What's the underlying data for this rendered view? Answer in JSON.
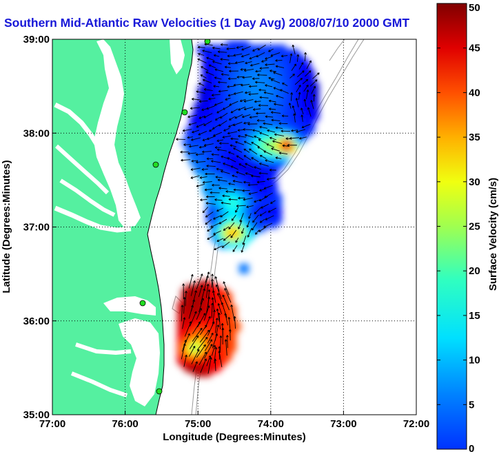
{
  "title": "Southern Mid-Atlantic Raw Velocities (1 Day Avg) 2008/07/10 2000 GMT",
  "map": {
    "xlabel": "Longitude (Degrees:Minutes)",
    "ylabel": "Latitude (Degrees:Minutes)",
    "lon_range": [
      -77,
      -72
    ],
    "lat_range": [
      35,
      39
    ],
    "x_ticks": [
      {
        "value": -77,
        "label": "77:00"
      },
      {
        "value": -76,
        "label": "76:00"
      },
      {
        "value": -75,
        "label": "75:00"
      },
      {
        "value": -74,
        "label": "74:00"
      },
      {
        "value": -73,
        "label": "73:00"
      },
      {
        "value": -72,
        "label": "72:00"
      }
    ],
    "y_ticks": [
      {
        "value": 39,
        "label": "39:00"
      },
      {
        "value": 38,
        "label": "38:00"
      },
      {
        "value": 37,
        "label": "37:00"
      },
      {
        "value": 36,
        "label": "36:00"
      },
      {
        "value": 35,
        "label": "35:00"
      }
    ],
    "grid": "dotted",
    "land_color": "#55f0a0",
    "water_color": "#ffffff",
    "site_color": "#22dd22",
    "vector_color": "#000000"
  },
  "colorbar": {
    "label": "Surface Velocity (cm/s)",
    "range": [
      0,
      50
    ],
    "ticks": [
      0,
      5,
      10,
      15,
      20,
      25,
      30,
      35,
      40,
      45,
      50
    ],
    "colormap": "jet"
  }
}
